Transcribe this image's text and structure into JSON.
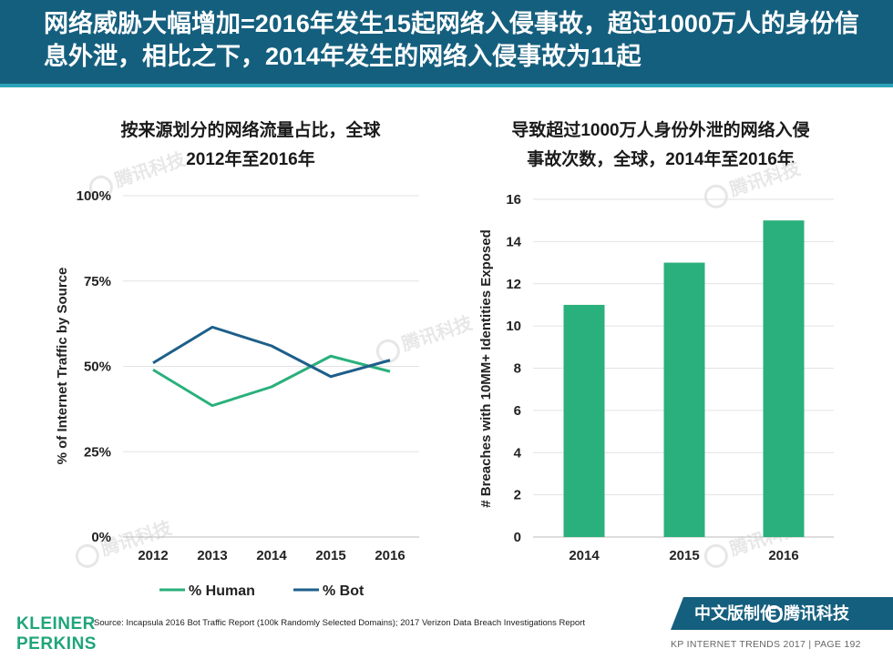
{
  "header": {
    "title": "网络威胁大幅增加=2016年发生15起网络入侵事故，超过1000万人的身份信息外泄，相比之下，2014年发生的网络入侵事故为11起"
  },
  "watermark": "腾讯科技",
  "chart_data": [
    {
      "type": "line",
      "title": "按来源划分的网络流量占比，全球 2012年至2016年",
      "xlabel": "",
      "ylabel": "% of Internet Traffic by Source",
      "x": [
        "2012",
        "2013",
        "2014",
        "2015",
        "2016"
      ],
      "ylim": [
        0,
        100
      ],
      "yticks": [
        "0%",
        "25%",
        "50%",
        "75%",
        "100%"
      ],
      "ytick_values": [
        0,
        25,
        50,
        75,
        100
      ],
      "grid": true,
      "legend_position": "bottom",
      "series": [
        {
          "name": "% Human",
          "color": "#2ab07c",
          "values": [
            49,
            38.5,
            44,
            53,
            48.5
          ]
        },
        {
          "name": "% Bot",
          "color": "#1d5f8a",
          "values": [
            51,
            61.5,
            56,
            47,
            51.8
          ]
        }
      ]
    },
    {
      "type": "bar",
      "title": "导致超过1000万人身份外泄的网络入侵事故次数，全球，2014年至2016年",
      "xlabel": "",
      "ylabel": "# Breaches with 10MM+ Identities Exposed",
      "categories": [
        "2014",
        "2015",
        "2016"
      ],
      "values": [
        11,
        13,
        15
      ],
      "ylim": [
        0,
        16
      ],
      "yticks": [
        0,
        2,
        4,
        6,
        8,
        10,
        12,
        14,
        16
      ],
      "grid": true,
      "color": "#2ab07c"
    }
  ],
  "charts": {
    "left_title_line1": "按来源划分的网络流量占比，全球",
    "left_title_line2": "2012年至2016年",
    "right_title_line1": "导致超过1000万人身份外泄的网络入侵",
    "right_title_line2": "事故次数，全球，2014年至2016年"
  },
  "footer": {
    "logo_line1": "KLEINER",
    "logo_line2": "PERKINS",
    "source": "Source: Incapsula 2016 Bot Traffic Report (100k Randomly Selected Domains); 2017 Verizon Data Breach Investigations Report",
    "badge_label": "中文版制作：",
    "badge_brand": "腾讯科技",
    "page_info": "KP INTERNET TRENDS 2017  |  PAGE 192"
  }
}
